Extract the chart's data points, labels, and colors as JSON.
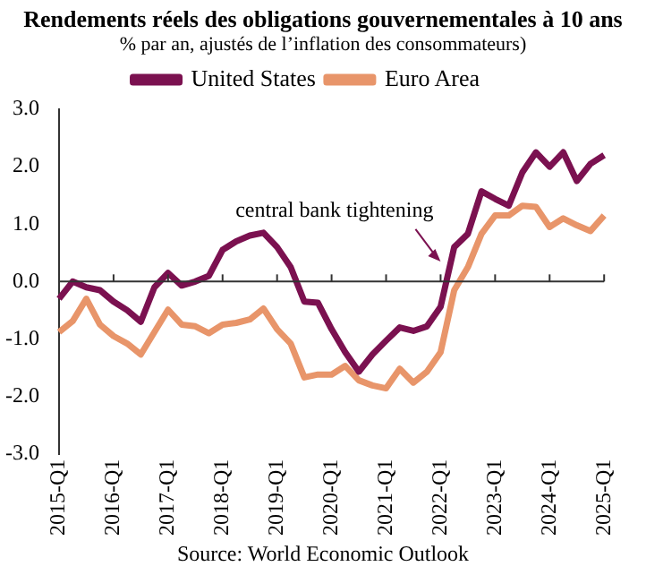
{
  "chart_data": {
    "type": "line",
    "title": "Rendements réels des obligations gouvernementales à 10 ans",
    "subtitle": "% par an, ajustés de l’inflation des consommateurs)",
    "categories": [
      "2015-Q1",
      null,
      null,
      null,
      "2016-Q1",
      null,
      null,
      null,
      "2017-Q1",
      null,
      null,
      null,
      "2018-Q1",
      null,
      null,
      null,
      "2019-Q1",
      null,
      null,
      null,
      "2020-Q1",
      null,
      null,
      null,
      "2021-Q1",
      null,
      null,
      null,
      "2022-Q1",
      null,
      null,
      null,
      "2023-Q1",
      null,
      null,
      null,
      "2024-Q1",
      null,
      null,
      null,
      "2025-Q1"
    ],
    "series": [
      {
        "name": "United States",
        "color": "#7b1150",
        "values": [
          -0.3,
          0.0,
          -0.1,
          -0.15,
          -0.35,
          -0.5,
          -0.7,
          -0.1,
          0.15,
          -0.07,
          0.0,
          0.1,
          0.55,
          0.7,
          0.8,
          0.85,
          0.6,
          0.25,
          -0.35,
          -0.37,
          -0.83,
          -1.23,
          -1.57,
          -1.27,
          -1.03,
          -0.8,
          -0.86,
          -0.78,
          -0.44,
          0.6,
          0.83,
          1.57,
          1.44,
          1.32,
          1.9,
          2.25,
          2.0,
          2.25,
          1.75,
          2.05,
          2.2
        ]
      },
      {
        "name": "Euro Area",
        "color": "#e8956a",
        "values": [
          -0.88,
          -0.69,
          -0.3,
          -0.75,
          -0.95,
          -1.08,
          -1.27,
          -0.88,
          -0.49,
          -0.75,
          -0.78,
          -0.9,
          -0.75,
          -0.72,
          -0.66,
          -0.47,
          -0.83,
          -1.08,
          -1.67,
          -1.62,
          -1.62,
          -1.47,
          -1.72,
          -1.81,
          -1.86,
          -1.52,
          -1.76,
          -1.57,
          -1.23,
          -0.15,
          0.25,
          0.83,
          1.15,
          1.15,
          1.32,
          1.3,
          0.95,
          1.1,
          0.98,
          0.88,
          1.15
        ]
      }
    ],
    "ylim": [
      -3,
      3
    ],
    "yticks": [
      {
        "value": -3,
        "label": "-3.0"
      },
      {
        "value": -2,
        "label": "-2.0"
      },
      {
        "value": -1,
        "label": "-1.0"
      },
      {
        "value": 0,
        "label": "0.0"
      },
      {
        "value": 1,
        "label": "1.0"
      },
      {
        "value": 2,
        "label": "2.0"
      },
      {
        "value": 3,
        "label": "3.0"
      }
    ],
    "annotations": [
      {
        "text": "central bank tightening",
        "x": "2022-Q1",
        "y": 0.35
      },
      "Source: World Economic Outlook"
    ],
    "ref_lines": [
      {
        "axis": "y",
        "value": 0,
        "color": "#333333"
      }
    ],
    "legend": "top",
    "grid": false,
    "marker": "none",
    "line_style": "solid"
  }
}
